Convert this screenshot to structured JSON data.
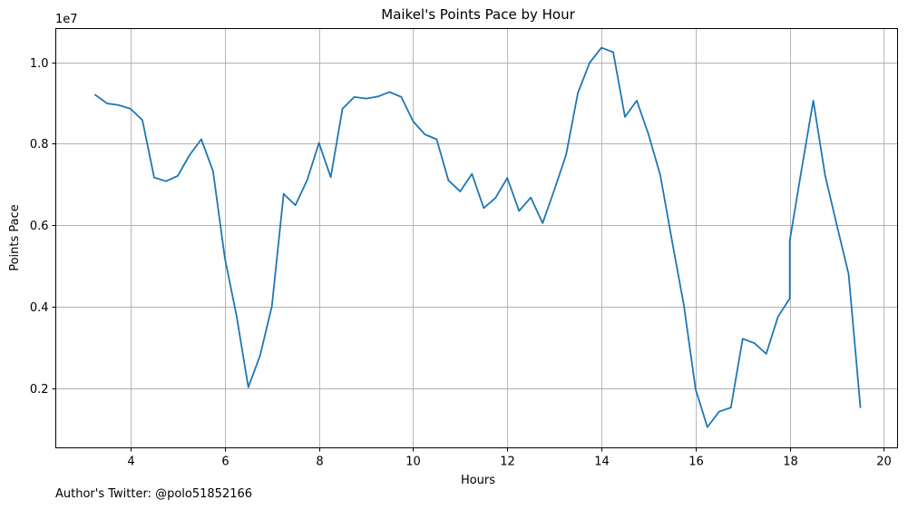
{
  "chart_data": {
    "type": "line",
    "title": "Maikel's Points Pace by Hour",
    "xlabel": "Hours",
    "ylabel": "Points Pace",
    "y_offset_label": "1e7",
    "xlim": [
      2.41,
      20.29
    ],
    "ylim": [
      530000,
      10830000
    ],
    "x_ticks": [
      4,
      6,
      8,
      10,
      12,
      14,
      16,
      18,
      20
    ],
    "x_tick_labels": [
      "4",
      "6",
      "8",
      "10",
      "12",
      "14",
      "16",
      "18",
      "20"
    ],
    "y_ticks": [
      2000000,
      4000000,
      6000000,
      8000000,
      10000000
    ],
    "y_tick_labels": [
      "0.2",
      "0.4",
      "0.6",
      "0.8",
      "1.0"
    ],
    "grid": true,
    "line_color": "#1f77b4",
    "series": [
      {
        "x": [
          3.25,
          3.5,
          3.75,
          4.0,
          4.25,
          4.5,
          4.75,
          5.0,
          5.25,
          5.5,
          5.75,
          6.0,
          6.25,
          6.5,
          6.75,
          7.0,
          7.25,
          7.5,
          7.75,
          8.0,
          8.25,
          8.5,
          8.75,
          9.0,
          9.25,
          9.5,
          9.75,
          10.0,
          10.25,
          10.5,
          10.75,
          11.0,
          11.25,
          11.5,
          11.75,
          12.0,
          12.25,
          12.5,
          12.75,
          13.0,
          13.25,
          13.5,
          13.75,
          14.0,
          14.25,
          14.5,
          14.75,
          15.0,
          15.25,
          15.5,
          15.75,
          16.0,
          16.25,
          16.5,
          16.75,
          17.0,
          17.25,
          17.5,
          17.75,
          18.0,
          18.0,
          18.25,
          18.5,
          18.75,
          19.0,
          19.25,
          19.5
        ],
        "y": [
          9200000,
          8990000,
          8950000,
          8860000,
          8580000,
          7170000,
          7080000,
          7210000,
          7720000,
          8110000,
          7330000,
          5200000,
          3770000,
          2020000,
          2800000,
          4010000,
          6770000,
          6490000,
          7110000,
          8020000,
          7180000,
          8860000,
          9150000,
          9110000,
          9160000,
          9270000,
          9150000,
          8550000,
          8230000,
          8110000,
          7100000,
          6830000,
          7260000,
          6420000,
          6670000,
          7160000,
          6350000,
          6680000,
          6050000,
          6870000,
          7730000,
          9250000,
          9990000,
          10360000,
          10250000,
          8660000,
          9060000,
          8230000,
          7230000,
          5610000,
          4040000,
          1970000,
          1040000,
          1420000,
          1520000,
          3210000,
          3100000,
          2840000,
          3750000,
          4200000,
          5620000,
          7360000,
          9060000,
          7230000,
          6000000,
          4800000,
          1530000
        ]
      }
    ]
  },
  "footer": {
    "text": "Author's Twitter: @polo51852166"
  }
}
